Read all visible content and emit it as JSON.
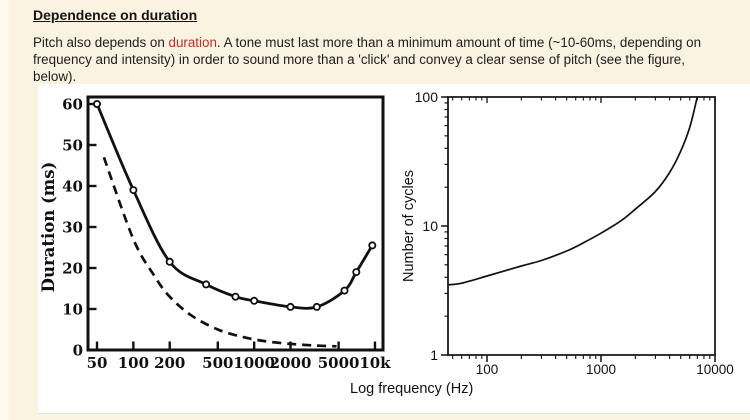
{
  "page": {
    "background_color": "#fbf3e2",
    "accent_color": "#b5332a",
    "text_color": "#1d1d1d",
    "heading": "Dependence on duration",
    "paragraph_parts": [
      {
        "text": "Pitch also depends on "
      },
      {
        "text": "duration",
        "emphasis": "red"
      },
      {
        "text": ". A tone must last more than a minimum amount of time (~10-60ms, depending on\nfrequency and intensity) in order to sound more than a 'click' and convey a clear sense of pitch (see the figure,\nbelow)."
      }
    ]
  },
  "figure": {
    "shared_xlabel": "Log frequency (Hz)",
    "background_color": "#ffffff",
    "ink_color": "#111111"
  },
  "chart_data": [
    {
      "type": "line",
      "title": "",
      "xlabel": "Log frequency (Hz)",
      "ylabel": "Duration (ms)",
      "xscale": "log",
      "yscale": "linear",
      "xlim": [
        50,
        10000
      ],
      "ylim": [
        0,
        60
      ],
      "grid": false,
      "x_ticks": [
        [
          50,
          "50"
        ],
        [
          100,
          "100"
        ],
        [
          200,
          "200"
        ],
        [
          500,
          "500"
        ],
        [
          1000,
          "1000"
        ],
        [
          2000,
          "2000"
        ],
        [
          5000,
          "5000"
        ],
        [
          10000,
          "10k"
        ]
      ],
      "y_ticks": [
        [
          0,
          "0"
        ],
        [
          10,
          "10"
        ],
        [
          20,
          "20"
        ],
        [
          30,
          "30"
        ],
        [
          40,
          "40"
        ],
        [
          50,
          "50"
        ],
        [
          60,
          "60"
        ]
      ],
      "series": [
        {
          "name": "threshold-duration-measured",
          "style": "solid",
          "markers": true,
          "points": [
            [
              50,
              60
            ],
            [
              100,
              39
            ],
            [
              200,
              21.5
            ],
            [
              400,
              16
            ],
            [
              700,
              13
            ],
            [
              1000,
              12
            ],
            [
              2000,
              10.5
            ],
            [
              3300,
              10.5
            ],
            [
              5600,
              14.5
            ],
            [
              7000,
              19
            ],
            [
              9500,
              25.5
            ]
          ]
        },
        {
          "name": "lower-bound-dashed",
          "style": "dashed",
          "markers": false,
          "points": [
            [
              57,
              47
            ],
            [
              100,
              27
            ],
            [
              150,
              18
            ],
            [
              200,
              13
            ],
            [
              300,
              8.5
            ],
            [
              500,
              5
            ],
            [
              800,
              3.2
            ],
            [
              1200,
              2.2
            ],
            [
              2000,
              1.5
            ],
            [
              3200,
              1.1
            ],
            [
              4800,
              0.9
            ]
          ]
        }
      ]
    },
    {
      "type": "line",
      "title": "",
      "xlabel": "Log frequency (Hz)",
      "ylabel": "Number of cycles",
      "xscale": "log",
      "yscale": "log",
      "xlim": [
        46,
        10000
      ],
      "ylim": [
        1,
        100
      ],
      "grid": false,
      "minor_ticks": true,
      "x_ticks": [
        [
          100,
          "100"
        ],
        [
          1000,
          "1000"
        ],
        [
          10000,
          "10000"
        ]
      ],
      "y_ticks": [
        [
          1,
          "1"
        ],
        [
          10,
          "10"
        ],
        [
          100,
          "100"
        ]
      ],
      "series": [
        {
          "name": "number-of-cycles",
          "style": "solid",
          "markers": false,
          "points": [
            [
              46,
              3.5
            ],
            [
              60,
              3.6
            ],
            [
              100,
              4.1
            ],
            [
              200,
              4.9
            ],
            [
              300,
              5.4
            ],
            [
              500,
              6.4
            ],
            [
              700,
              7.4
            ],
            [
              1000,
              8.8
            ],
            [
              1500,
              11
            ],
            [
              2000,
              13.5
            ],
            [
              3000,
              18.5
            ],
            [
              4000,
              26
            ],
            [
              5000,
              38
            ],
            [
              6000,
              58
            ],
            [
              7000,
              100
            ]
          ]
        }
      ]
    }
  ]
}
